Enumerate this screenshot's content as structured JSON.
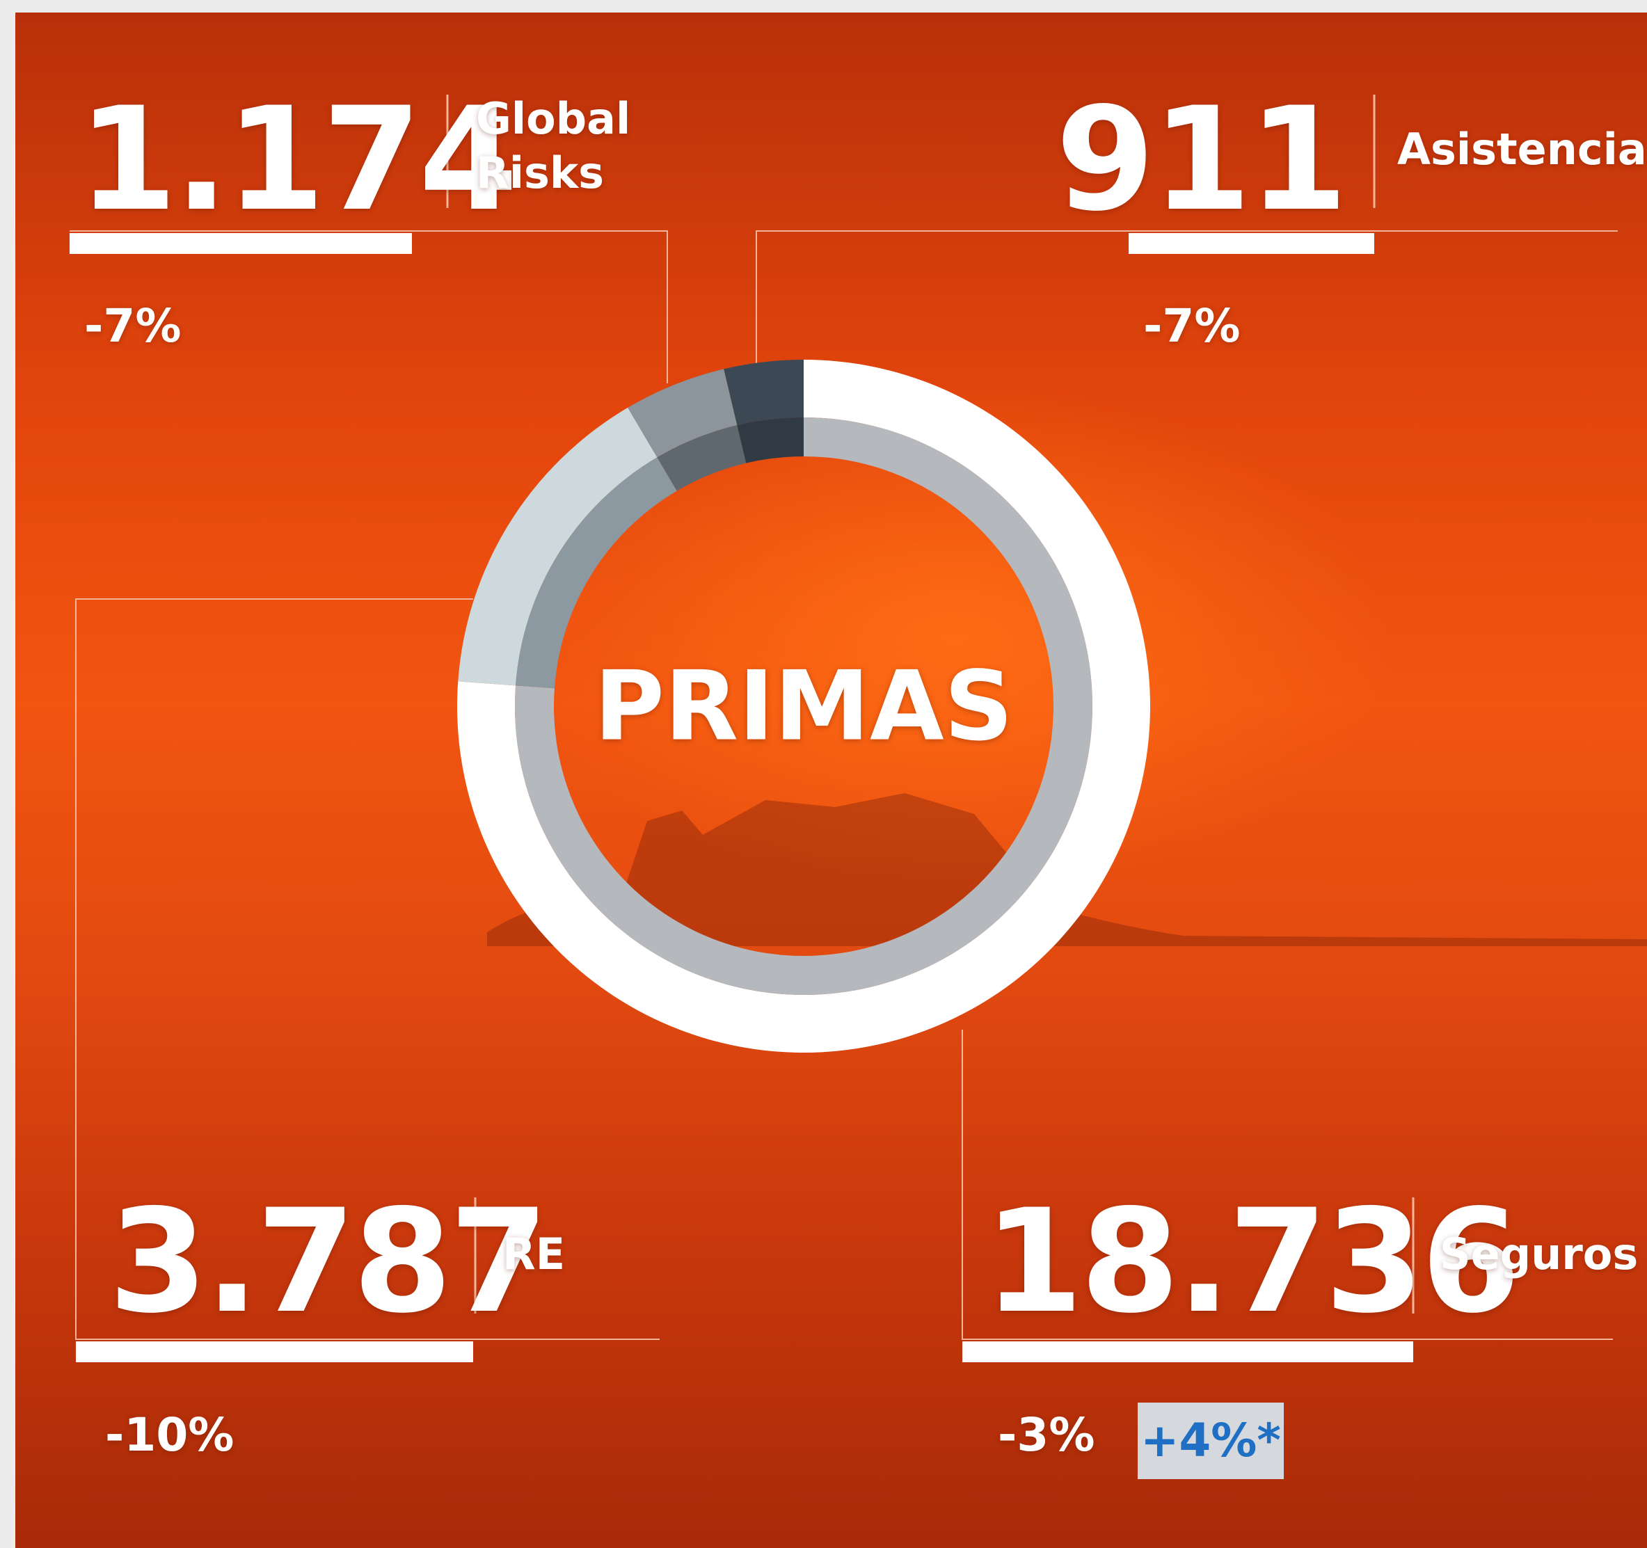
{
  "chart_data": {
    "type": "pie",
    "donut": true,
    "title": "PRIMAS",
    "categories": [
      "Seguros",
      "RE",
      "Global Risks",
      "Asistencia"
    ],
    "values": [
      18736,
      3787,
      1174,
      911
    ],
    "value_labels": [
      "18.736",
      "3.787",
      "1.174",
      "911"
    ],
    "colors": [
      "#ffffff",
      "#cdd9dd",
      "#8b959b",
      "#3c4854"
    ],
    "inner_colors": [
      "#b5b8bd",
      "#8d99a0",
      "#5f686f",
      "#2f3a45"
    ],
    "change_labels": [
      "-3%",
      "-10%",
      "-7%",
      "-7%"
    ],
    "adjusted_change": "+4%*"
  }
}
